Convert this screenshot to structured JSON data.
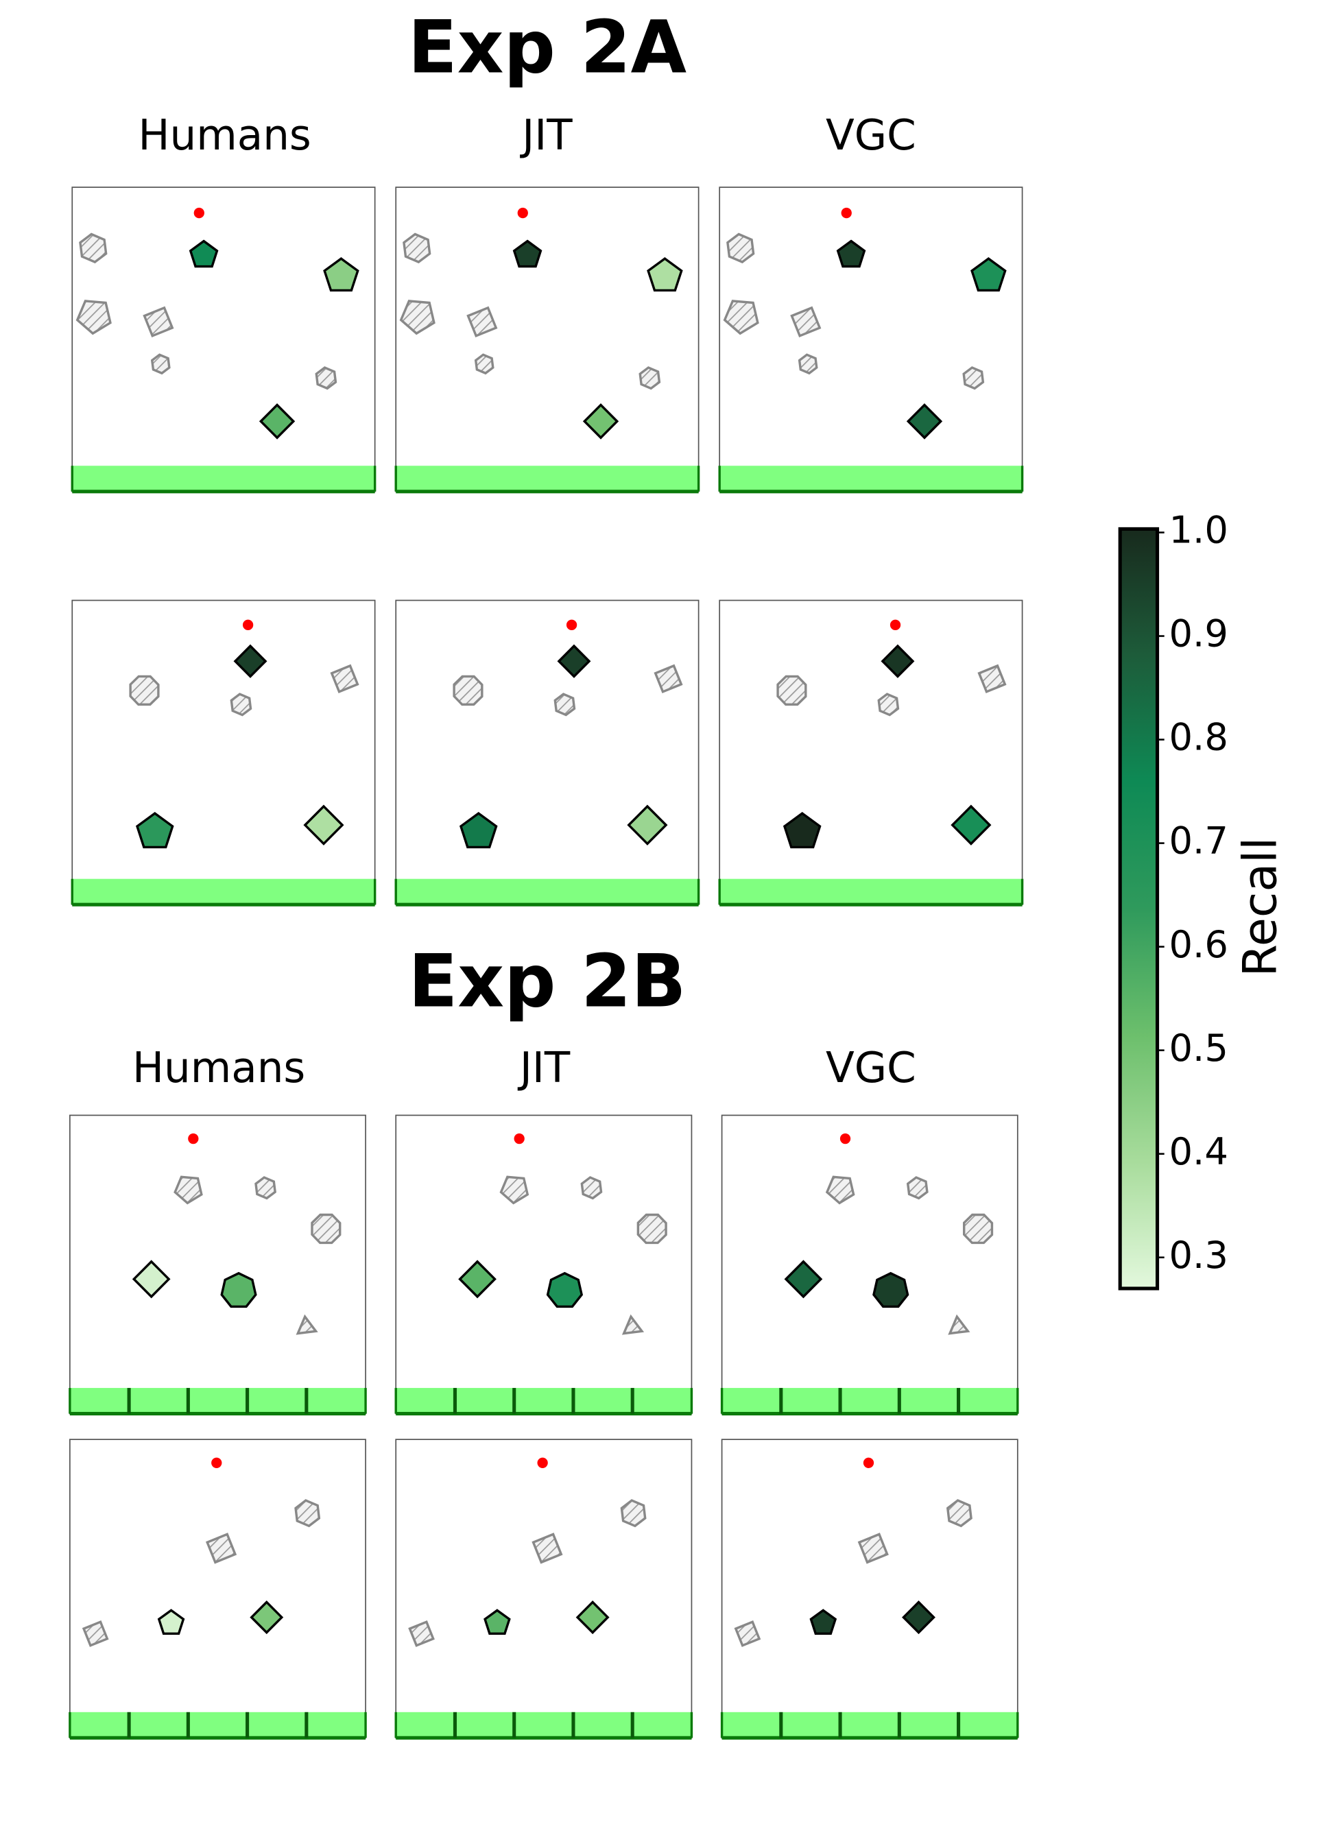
{
  "chart_data": {
    "type": "scene-grid",
    "colormap": [
      "#e3f8dd",
      "#a8dc9c",
      "#6cbf6c",
      "#2f9a5c",
      "#0e8a55",
      "#1d5c3a",
      "#182a1d"
    ],
    "sections": [
      {
        "title": "Exp 2A",
        "columns": [
          "Humans",
          "JIT",
          "VGC"
        ],
        "scenes": [
          {
            "recall": [
              [
                0.75,
                0.45,
                0.55
              ],
              [
                0.95,
                0.38,
                0.5
              ],
              [
                0.95,
                0.7,
                0.85
              ]
            ]
          },
          {
            "recall": [
              [
                0.95,
                0.65,
                0.38
              ],
              [
                0.95,
                0.8,
                0.42
              ],
              [
                0.97,
                1.0,
                0.72
              ]
            ]
          }
        ]
      },
      {
        "title": "Exp 2B",
        "columns": [
          "Humans",
          "JIT",
          "VGC"
        ],
        "scenes": [
          {
            "recall": [
              [
                0.3,
                0.55
              ],
              [
                0.55,
                0.7
              ],
              [
                0.85,
                0.95
              ]
            ]
          },
          {
            "recall": [
              [
                0.3,
                0.48
              ],
              [
                0.55,
                0.5
              ],
              [
                0.95,
                0.95
              ]
            ]
          }
        ]
      }
    ],
    "colorbar": {
      "label": "Recall",
      "ylim": [
        0.27,
        1.0
      ],
      "yticks": [
        0.3,
        0.4,
        0.5,
        0.6,
        0.7,
        0.8,
        0.9,
        {
          "value": 1.0,
          "label": "1.0"
        }
      ]
    }
  }
}
